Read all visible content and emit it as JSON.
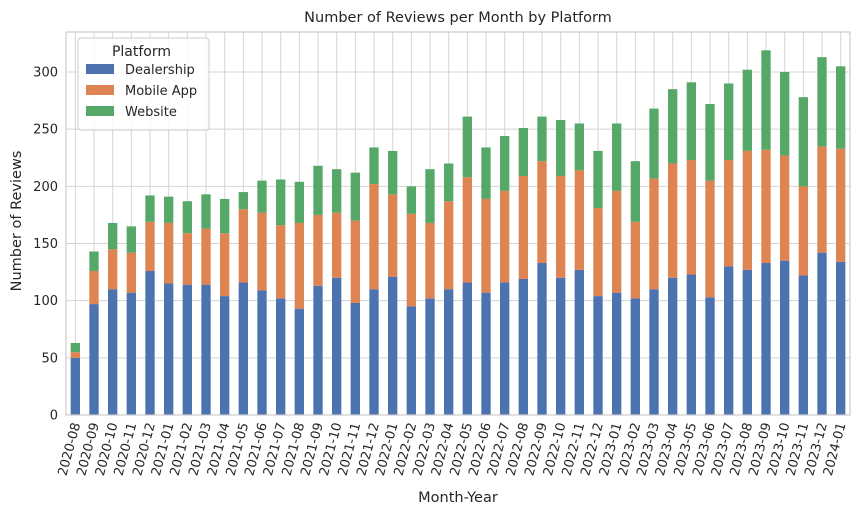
{
  "chart_data": {
    "type": "bar",
    "stacked": true,
    "title": "Number of Reviews per Month by Platform",
    "xlabel": "Month-Year",
    "ylabel": "Number of Reviews",
    "ylim": [
      0,
      335
    ],
    "yticks": [
      0,
      50,
      100,
      150,
      200,
      250,
      300
    ],
    "grid": true,
    "legend": {
      "title": "Platform",
      "placement": "top-left"
    },
    "categories": [
      "2020-08",
      "2020-09",
      "2020-10",
      "2020-11",
      "2020-12",
      "2021-01",
      "2021-02",
      "2021-03",
      "2021-04",
      "2021-05",
      "2021-06",
      "2021-07",
      "2021-08",
      "2021-09",
      "2021-10",
      "2021-11",
      "2021-12",
      "2022-01",
      "2022-02",
      "2022-03",
      "2022-04",
      "2022-05",
      "2022-06",
      "2022-07",
      "2022-08",
      "2022-09",
      "2022-10",
      "2022-11",
      "2022-12",
      "2023-01",
      "2023-02",
      "2023-03",
      "2023-04",
      "2023-05",
      "2023-06",
      "2023-07",
      "2023-08",
      "2023-09",
      "2023-10",
      "2023-11",
      "2023-12",
      "2024-01"
    ],
    "series": [
      {
        "name": "Dealership",
        "color": "#4c72b0",
        "values": [
          50,
          97,
          110,
          107,
          126,
          115,
          114,
          114,
          104,
          116,
          109,
          102,
          93,
          113,
          120,
          98,
          110,
          121,
          95,
          102,
          110,
          116,
          107,
          116,
          119,
          133,
          120,
          127,
          104,
          107,
          102,
          110,
          120,
          123,
          103,
          130,
          127,
          133,
          135,
          122,
          142,
          134
        ]
      },
      {
        "name": "Mobile App",
        "color": "#dd8452",
        "values": [
          5,
          29,
          35,
          35,
          43,
          53,
          45,
          49,
          55,
          64,
          68,
          64,
          75,
          62,
          57,
          72,
          92,
          72,
          81,
          66,
          77,
          92,
          82,
          80,
          90,
          89,
          89,
          87,
          77,
          89,
          67,
          97,
          100,
          100,
          102,
          93,
          104,
          99,
          92,
          78,
          93,
          99
        ]
      },
      {
        "name": "Website",
        "color": "#55a868",
        "values": [
          8,
          17,
          23,
          23,
          23,
          23,
          28,
          30,
          30,
          15,
          28,
          40,
          36,
          43,
          38,
          42,
          32,
          38,
          24,
          47,
          33,
          53,
          45,
          48,
          42,
          39,
          49,
          41,
          50,
          59,
          53,
          61,
          65,
          68,
          67,
          67,
          71,
          87,
          73,
          78,
          78,
          72
        ]
      }
    ]
  }
}
